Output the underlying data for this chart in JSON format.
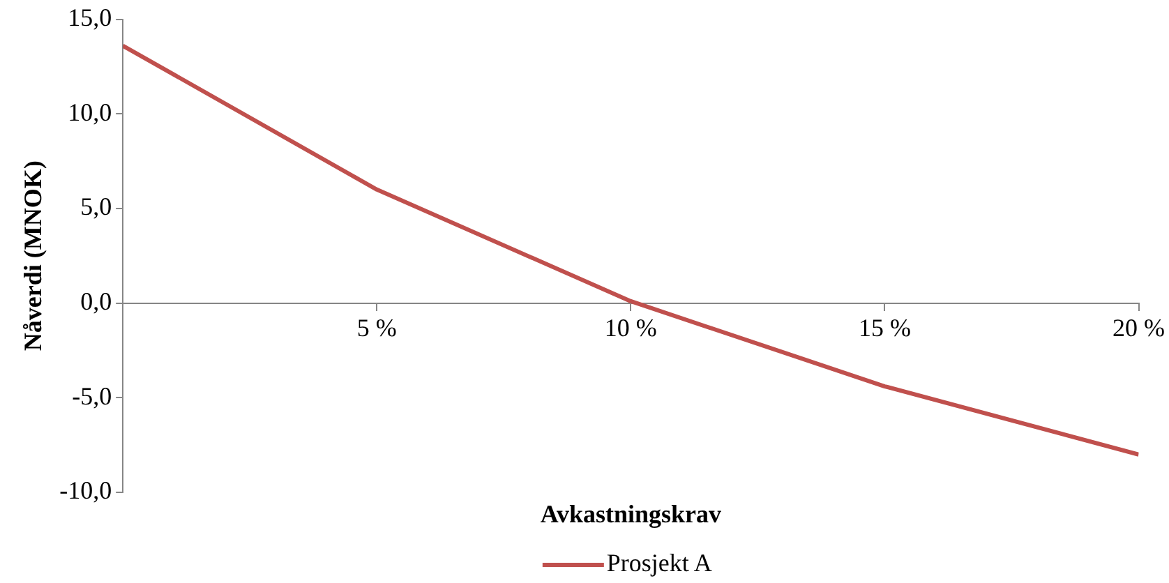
{
  "chart_data": {
    "type": "line",
    "xlabel": "Avkastningskrav",
    "ylabel": "Nåverdi (MNOK)",
    "x": [
      0,
      5,
      10,
      15,
      20
    ],
    "series": [
      {
        "name": "Prosjekt A",
        "color": "#c0504d",
        "values": [
          13.6,
          6.0,
          0.1,
          -4.4,
          -8.0
        ]
      }
    ],
    "xlim": [
      0,
      20
    ],
    "xticks": [
      {
        "value": 5,
        "label": "5 %"
      },
      {
        "value": 10,
        "label": "10 %"
      },
      {
        "value": 15,
        "label": "15 %"
      },
      {
        "value": 20,
        "label": "20 %"
      }
    ],
    "ylim": [
      -10,
      15
    ],
    "yticks": [
      {
        "value": -10,
        "label": "-10,0"
      },
      {
        "value": -5,
        "label": "-5,0"
      },
      {
        "value": 0,
        "label": "0,0"
      },
      {
        "value": 5,
        "label": "5,0"
      },
      {
        "value": 10,
        "label": "10,0"
      },
      {
        "value": 15,
        "label": "15,0"
      }
    ],
    "grid": false,
    "legend": "bottom",
    "marker": "none",
    "line_style": "solid"
  }
}
